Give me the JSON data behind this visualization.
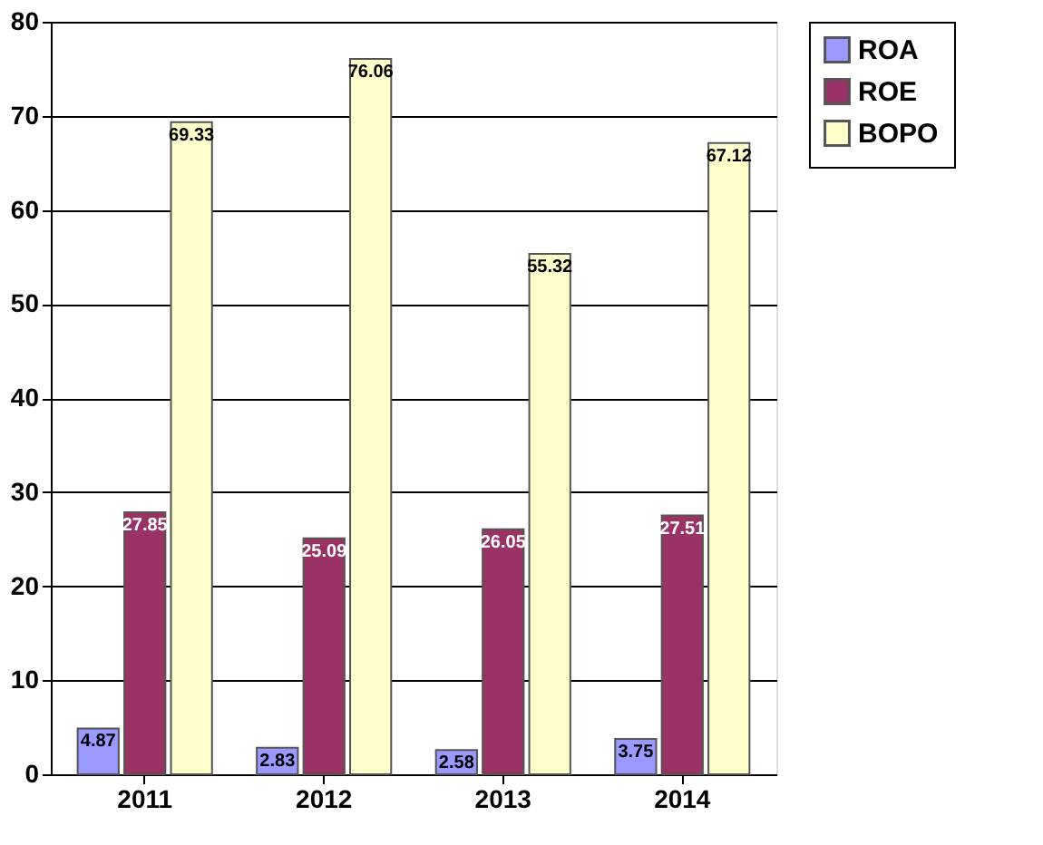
{
  "chart_data": {
    "type": "bar",
    "categories": [
      "2011",
      "2012",
      "2013",
      "2014"
    ],
    "series": [
      {
        "name": "ROA",
        "color": "#9999ff",
        "values": [
          4.87,
          2.83,
          2.58,
          3.75
        ]
      },
      {
        "name": "ROE",
        "color": "#993366",
        "values": [
          27.85,
          25.09,
          26.05,
          27.51
        ]
      },
      {
        "name": "BOPO",
        "color": "#ffffcc",
        "values": [
          69.33,
          76.06,
          55.32,
          67.12
        ]
      }
    ],
    "ylim": [
      0,
      80
    ],
    "yticks": [
      0,
      10,
      20,
      30,
      40,
      50,
      60,
      70,
      80
    ],
    "grid": "y",
    "legend": "right",
    "data_labels": true
  }
}
